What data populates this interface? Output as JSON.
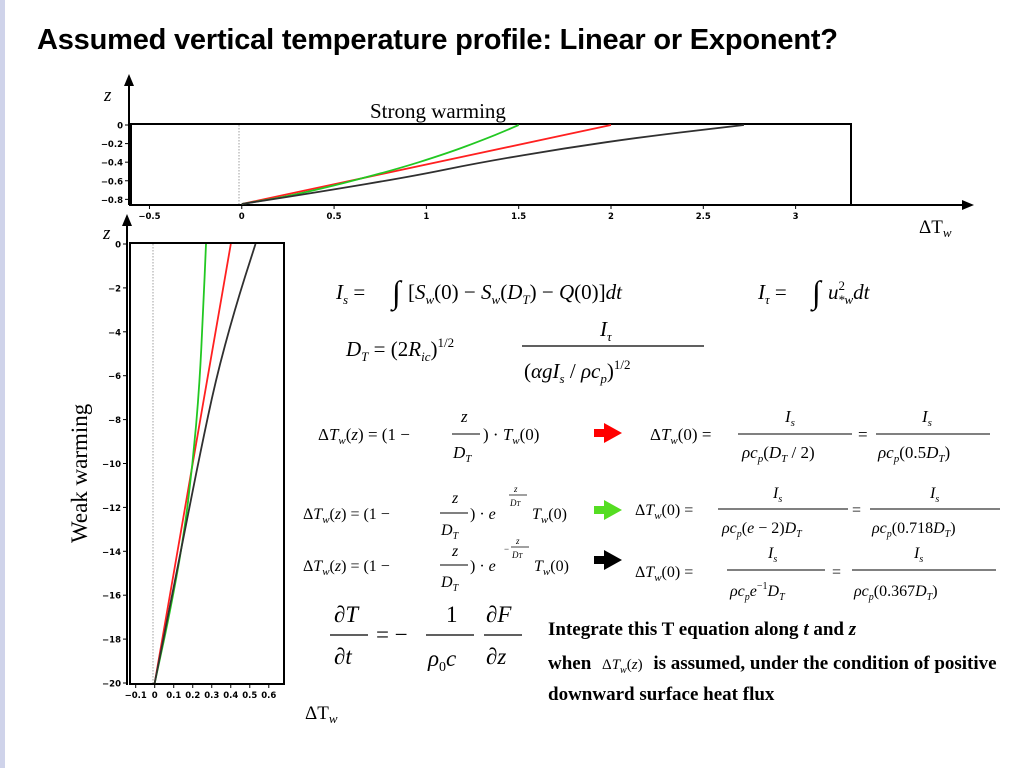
{
  "slide": {
    "title": "Assumed vertical temperature profile: Linear or Exponent?"
  },
  "top_plot": {
    "annotation": "Strong warming",
    "z_label": "z",
    "x_label_main": "ΔT",
    "x_label_sub": "w",
    "y_ticks": [
      "0",
      "−0.2",
      "−0.4",
      "−0.6",
      "−0.8"
    ],
    "x_ticks": [
      "−0.5",
      "0",
      "0.5",
      "1",
      "1.5",
      "2",
      "2.5",
      "3"
    ]
  },
  "bottom_plot": {
    "annotation": "Weak warming",
    "z_label": "z",
    "x_label_main": "ΔT",
    "x_label_sub": "w",
    "y_ticks": [
      "0",
      "−2",
      "−4",
      "−6",
      "−8",
      "−10",
      "−12",
      "−14",
      "−16",
      "−18",
      "−20"
    ],
    "x_ticks": [
      "−0.1",
      "0",
      "0.1",
      "0.2",
      "0.3",
      "0.4",
      "0.5",
      "0.6"
    ]
  },
  "chart_data": [
    {
      "type": "line",
      "title": "Strong warming",
      "xlabel": "ΔTw",
      "ylabel": "z",
      "xlim": [
        -0.6,
        3.3
      ],
      "ylim": [
        -0.85,
        0.0
      ],
      "series": [
        {
          "color": "#ff2020",
          "x": [
            0.0,
            0.5,
            1.0,
            1.5,
            2.0
          ],
          "y": [
            -0.85,
            -0.6375,
            -0.425,
            -0.2125,
            0.0
          ]
        },
        {
          "color": "#22c822",
          "x": [
            0.0,
            0.3,
            0.8,
            1.12,
            1.32,
            1.43,
            1.5
          ],
          "y": [
            -0.85,
            -0.75,
            -0.5,
            -0.3,
            -0.15,
            -0.06,
            0.0
          ]
        },
        {
          "color": "#303030",
          "x": [
            0.0,
            0.42,
            0.93,
            1.3,
            1.75,
            2.2,
            2.72
          ],
          "y": [
            -0.85,
            -0.72,
            -0.55,
            -0.4,
            -0.25,
            -0.12,
            0.0
          ]
        }
      ]
    },
    {
      "type": "line",
      "title": "Weak warming",
      "xlabel": "ΔTw",
      "ylabel": "z",
      "xlim": [
        -0.13,
        0.68
      ],
      "ylim": [
        -20.0,
        0.0
      ],
      "series": [
        {
          "color": "#ff2020",
          "x": [
            0.0,
            0.1,
            0.2,
            0.3,
            0.4
          ],
          "y": [
            -20.0,
            -15.0,
            -10.0,
            -5.0,
            0.0
          ]
        },
        {
          "color": "#22c822",
          "x": [
            0.0,
            0.075,
            0.15,
            0.2,
            0.235,
            0.255,
            0.27
          ],
          "y": [
            -20.0,
            -17.0,
            -13.5,
            -10.0,
            -6.5,
            -3.0,
            0.0
          ]
        },
        {
          "color": "#303030",
          "x": [
            0.0,
            0.08,
            0.16,
            0.24,
            0.32,
            0.42,
            0.53
          ],
          "y": [
            -20.0,
            -16.5,
            -13.0,
            -9.5,
            -6.2,
            -3.0,
            0.0
          ]
        }
      ]
    }
  ],
  "equations": {
    "is_eq": "I_s = ∫[S_w(0) − S_w(D_T) − Q(0)]dt",
    "itau_eq": "I_τ = ∫u*w² dt",
    "dt_eq": "D_T = (2R_ic)^(1/2) I_τ / (αgI_s/ρc_p)^(1/2)",
    "linear_profile": "ΔT_w(z) = (1 − z/D_T)·T_w(0)",
    "linear_result": "ΔT_w(0) = I_s/(ρc_p(D_T/2)) = I_s/(ρc_p(0.5D_T))",
    "exp_profile_1": "ΔT_w(z) = (1 − z/D_T)·e^(z/D_T) T_w(0)",
    "exp_result_1": "ΔT_w(0) = I_s/(ρc_p(e−2)D_T) = I_s/(ρc_p(0.718D_T))",
    "exp_profile_2": "ΔT_w(z) = (1 − z/D_T)·e^(−z/D_T) T_w(0)",
    "exp_result_2": "ΔT_w(0) = I_s/(ρc_p e^(−1) D_T) = I_s/(ρc_p(0.367D_T))",
    "heat_eq": "∂T/∂t = −(1/ρ0c) ∂F/∂z",
    "arrow_colors": {
      "linear": "#ff0000",
      "exp1": "#55dd22",
      "exp2": "#000000"
    }
  },
  "note": {
    "line1_a": "Integrate this T equation along",
    "line1_t": "t",
    "line1_and": "and",
    "line1_z": "z",
    "line2_when": "when",
    "line2_rest": "is assumed, under the condition of positive downward surface heat flux"
  }
}
